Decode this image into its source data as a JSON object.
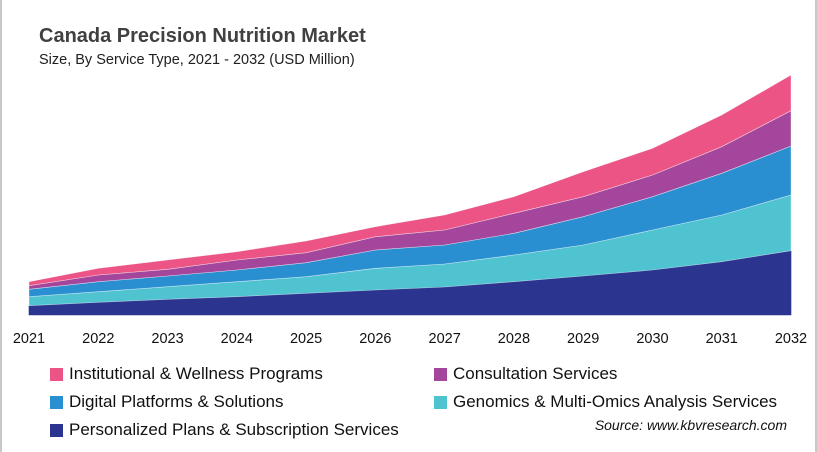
{
  "chart_data": {
    "type": "area",
    "stacked": true,
    "title": "Canada Precision Nutrition Market",
    "subtitle": "Size, By Service Type, 2021 - 2032 (USD Million)",
    "categories": [
      "2021",
      "2022",
      "2023",
      "2024",
      "2025",
      "2026",
      "2027",
      "2028",
      "2029",
      "2030",
      "2031",
      "2032"
    ],
    "ylim": [
      0,
      240
    ],
    "y_axis_shown": false,
    "grid": false,
    "legend_position": "bottom",
    "series": [
      {
        "name": "Personalized Plans & Subscription Services",
        "color": "#2b3590",
        "values": [
          9.3,
          12.7,
          15.7,
          18.3,
          21.7,
          25,
          28,
          33.3,
          39,
          45,
          53.3,
          64.3
        ]
      },
      {
        "name": "Genomics & Multi-Omics Analysis Services",
        "color": "#4fc3d0",
        "values": [
          9,
          10.6,
          12.6,
          15,
          16.6,
          21.7,
          23,
          26.7,
          31,
          40,
          46.7,
          55.7
        ]
      },
      {
        "name": "Digital Platforms & Solutions",
        "color": "#2a8fd0",
        "values": [
          7.4,
          10,
          10.7,
          11.7,
          14,
          18.3,
          19,
          21.7,
          28.3,
          33.3,
          41.7,
          49
        ]
      },
      {
        "name": "Consultation Services",
        "color": "#a4479c",
        "values": [
          3.6,
          6.7,
          6.7,
          10,
          10,
          13.3,
          15,
          20,
          20,
          21.7,
          26.6,
          35.3
        ]
      },
      {
        "name": "Institutional & Wellness Programs",
        "color": "#ec5486",
        "values": [
          4,
          6.7,
          9.3,
          8.3,
          11.7,
          10,
          15,
          16.6,
          25,
          26.7,
          31.7,
          35.7
        ]
      }
    ]
  },
  "legend": [
    {
      "label": "Institutional & Wellness Programs",
      "color": "#ec5486"
    },
    {
      "label": "Consultation Services",
      "color": "#a4479c"
    },
    {
      "label": "Digital Platforms & Solutions",
      "color": "#2a8fd0"
    },
    {
      "label": "Genomics & Multi-Omics Analysis Services",
      "color": "#4fc3d0"
    },
    {
      "label": "Personalized Plans & Subscription Services",
      "color": "#2b3590"
    }
  ],
  "source": "Source: www.kbvresearch.com"
}
